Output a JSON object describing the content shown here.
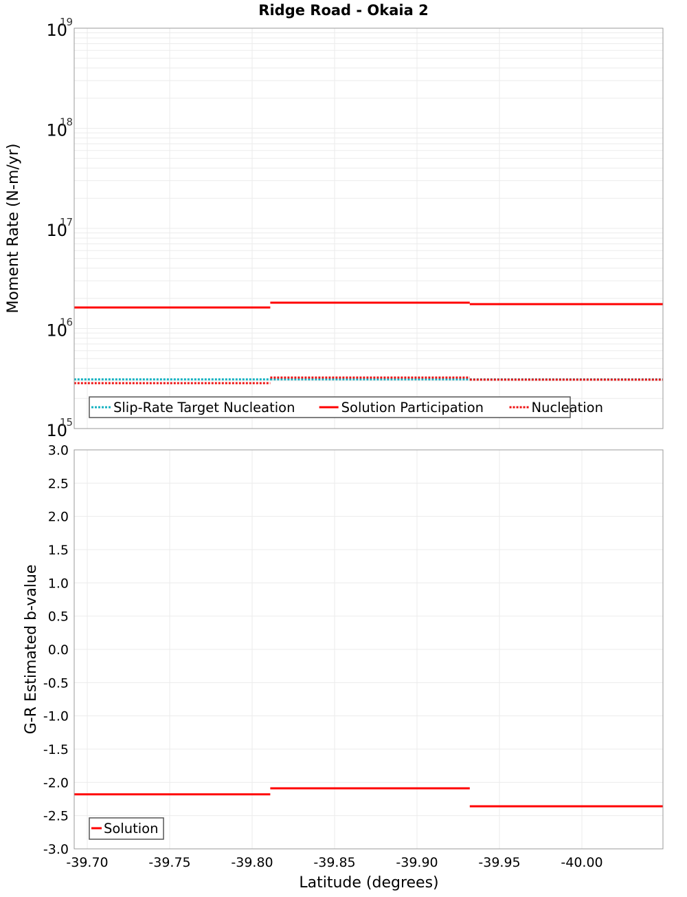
{
  "title": "Ridge Road - Okaia 2",
  "colors": {
    "solution": "#ff0000",
    "nucleation": "#ee1111",
    "target": "#17b2c2",
    "grid": "#ebebeb",
    "axis": "#999999",
    "legend_border": "#555555"
  },
  "chart_data": [
    {
      "type": "line",
      "panel": "top",
      "title": "Ridge Road - Okaia 2",
      "xlabel": "Latitude (degrees)",
      "ylabel": "Moment Rate (N-m/yr)",
      "yscale": "log",
      "xlim": [
        -39.692,
        -40.049
      ],
      "ylim": [
        1000000000000000.0,
        1e+19
      ],
      "y_ticks": [
        {
          "base": "10",
          "exp": "15",
          "value": 1000000000000000.0
        },
        {
          "base": "10",
          "exp": "16",
          "value": 1e+16
        },
        {
          "base": "10",
          "exp": "17",
          "value": 1e+17
        },
        {
          "base": "10",
          "exp": "18",
          "value": 1e+18
        },
        {
          "base": "10",
          "exp": "19",
          "value": 1e+19
        }
      ],
      "grid": true,
      "legend_position": "lower-left",
      "series": [
        {
          "name": "Slip-Rate Target Nucleation",
          "style": "dotted",
          "color": "#17b2c2",
          "segments": [
            {
              "x0": -39.692,
              "x1": -39.811,
              "y": 3100000000000000.0
            },
            {
              "x0": -39.811,
              "x1": -39.932,
              "y": 3100000000000000.0
            },
            {
              "x0": -39.932,
              "x1": -40.049,
              "y": 3100000000000000.0
            }
          ]
        },
        {
          "name": "Solution Participation",
          "style": "solid",
          "color": "#ff0000",
          "segments": [
            {
              "x0": -39.692,
              "x1": -39.811,
              "y": 1.62e+16
            },
            {
              "x0": -39.811,
              "x1": -39.932,
              "y": 1.81e+16
            },
            {
              "x0": -39.932,
              "x1": -40.049,
              "y": 1.75e+16
            }
          ]
        },
        {
          "name": "Nucleation",
          "style": "dotted",
          "color": "#ee1111",
          "segments": [
            {
              "x0": -39.692,
              "x1": -39.811,
              "y": 2840000000000000.0
            },
            {
              "x0": -39.811,
              "x1": -39.932,
              "y": 3230000000000000.0
            },
            {
              "x0": -39.932,
              "x1": -40.049,
              "y": 3080000000000000.0
            }
          ]
        }
      ]
    },
    {
      "type": "line",
      "panel": "bottom",
      "xlabel": "Latitude (degrees)",
      "ylabel": "G-R Estimated b-value",
      "xlim": [
        -39.692,
        -40.049
      ],
      "ylim": [
        -3.0,
        3.0
      ],
      "x_ticks": [
        "-39.70",
        "-39.75",
        "-39.80",
        "-39.85",
        "-39.90",
        "-39.95",
        "-40.00"
      ],
      "y_ticks": [
        "3.0",
        "2.5",
        "2.0",
        "1.5",
        "1.0",
        "0.5",
        "0.0",
        "-0.5",
        "-1.0",
        "-1.5",
        "-2.0",
        "-2.5",
        "-3.0"
      ],
      "grid": true,
      "legend_position": "lower-left",
      "series": [
        {
          "name": "Solution",
          "style": "solid",
          "color": "#ff0000",
          "segments": [
            {
              "x0": -39.692,
              "x1": -39.811,
              "y": -2.18
            },
            {
              "x0": -39.811,
              "x1": -39.932,
              "y": -2.09
            },
            {
              "x0": -39.932,
              "x1": -40.049,
              "y": -2.36
            }
          ]
        }
      ]
    }
  ]
}
